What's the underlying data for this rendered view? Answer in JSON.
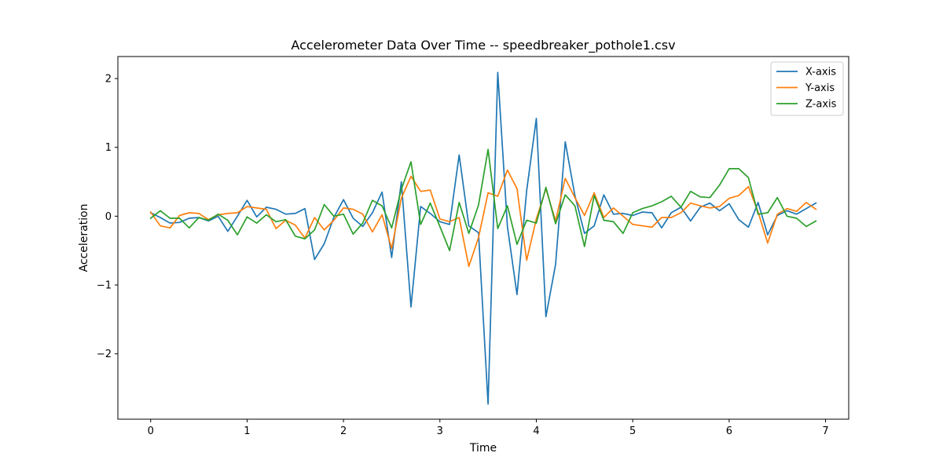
{
  "chart_data": {
    "type": "line",
    "title": "Accelerometer Data Over Time -- speedbreaker_pothole1.csv",
    "xlabel": "Time",
    "ylabel": "Acceleration",
    "xlim": [
      -0.34,
      7.24
    ],
    "ylim": [
      -2.95,
      2.32
    ],
    "xticks": [
      0,
      1,
      2,
      3,
      4,
      5,
      6,
      7
    ],
    "xtick_labels": [
      "0",
      "1",
      "2",
      "3",
      "4",
      "5",
      "6",
      "7"
    ],
    "yticks": [
      -2,
      -1,
      0,
      1,
      2
    ],
    "ytick_labels": [
      "−2",
      "−1",
      "0",
      "1",
      "2"
    ],
    "grid": false,
    "legend_position": "top-right",
    "x": [
      0.0,
      0.1,
      0.2,
      0.3,
      0.4,
      0.5,
      0.6,
      0.7,
      0.8,
      0.9,
      1.0,
      1.1,
      1.2,
      1.3,
      1.4,
      1.5,
      1.6,
      1.7,
      1.8,
      1.9,
      2.0,
      2.1,
      2.2,
      2.3,
      2.4,
      2.5,
      2.6,
      2.7,
      2.8,
      2.9,
      3.0,
      3.1,
      3.2,
      3.3,
      3.4,
      3.5,
      3.6,
      3.7,
      3.8,
      3.9,
      4.0,
      4.1,
      4.2,
      4.3,
      4.4,
      4.5,
      4.6,
      4.7,
      4.8,
      4.9,
      5.0,
      5.1,
      5.2,
      5.3,
      5.4,
      5.5,
      5.6,
      5.7,
      5.8,
      5.9,
      6.0,
      6.1,
      6.2,
      6.3,
      6.4,
      6.5,
      6.6,
      6.7,
      6.8,
      6.9
    ],
    "series": [
      {
        "name": "X-axis",
        "color": "#1f77b4",
        "values": [
          0.05,
          -0.02,
          -0.1,
          -0.09,
          -0.03,
          -0.02,
          -0.07,
          0.0,
          -0.22,
          0.0,
          0.23,
          -0.01,
          0.13,
          0.1,
          0.03,
          0.04,
          0.11,
          -0.63,
          -0.4,
          -0.02,
          0.24,
          -0.03,
          -0.15,
          0.05,
          0.35,
          -0.6,
          0.5,
          -1.32,
          0.14,
          0.04,
          -0.08,
          -0.12,
          0.89,
          -0.14,
          -0.24,
          -2.73,
          2.09,
          -0.15,
          -1.14,
          0.37,
          1.42,
          -1.46,
          -0.7,
          1.08,
          0.3,
          -0.25,
          -0.14,
          0.31,
          0.03,
          0.04,
          0.01,
          0.06,
          0.05,
          -0.17,
          0.05,
          0.13,
          -0.07,
          0.13,
          0.19,
          0.08,
          0.18,
          -0.05,
          -0.16,
          0.2,
          -0.27,
          0.01,
          0.08,
          0.03,
          0.11,
          0.19
        ]
      },
      {
        "name": "Y-axis",
        "color": "#ff7f0e",
        "values": [
          0.06,
          -0.14,
          -0.17,
          0.01,
          0.05,
          0.04,
          -0.05,
          0.02,
          0.04,
          0.05,
          0.14,
          0.12,
          0.1,
          -0.18,
          -0.06,
          -0.13,
          -0.32,
          -0.02,
          -0.2,
          -0.06,
          0.12,
          0.1,
          0.03,
          -0.23,
          0.02,
          -0.47,
          0.26,
          0.58,
          0.36,
          0.38,
          -0.04,
          -0.08,
          -0.02,
          -0.73,
          -0.31,
          0.34,
          0.29,
          0.67,
          0.4,
          -0.64,
          -0.04,
          0.4,
          -0.07,
          0.55,
          0.27,
          0.01,
          0.34,
          -0.02,
          0.12,
          0.0,
          -0.12,
          -0.14,
          -0.16,
          -0.02,
          -0.02,
          0.05,
          0.19,
          0.15,
          0.12,
          0.14,
          0.26,
          0.3,
          0.43,
          0.06,
          -0.39,
          0.03,
          0.11,
          0.07,
          0.2,
          0.1
        ]
      },
      {
        "name": "Z-axis",
        "color": "#2ca02c",
        "values": [
          -0.03,
          0.08,
          -0.03,
          -0.03,
          -0.17,
          -0.02,
          -0.06,
          0.03,
          -0.06,
          -0.27,
          -0.01,
          -0.1,
          0.02,
          -0.08,
          -0.05,
          -0.29,
          -0.33,
          -0.2,
          0.17,
          0.0,
          0.03,
          -0.26,
          -0.1,
          0.23,
          0.15,
          -0.17,
          0.39,
          0.79,
          -0.12,
          0.19,
          -0.15,
          -0.5,
          0.2,
          -0.25,
          0.16,
          0.97,
          -0.18,
          0.15,
          -0.41,
          -0.06,
          -0.1,
          0.42,
          -0.11,
          0.31,
          0.15,
          -0.44,
          0.3,
          -0.06,
          -0.08,
          -0.25,
          0.05,
          0.11,
          0.15,
          0.21,
          0.29,
          0.13,
          0.36,
          0.28,
          0.27,
          0.45,
          0.69,
          0.69,
          0.56,
          0.03,
          0.05,
          0.27,
          0.0,
          -0.03,
          -0.15,
          -0.07
        ]
      }
    ]
  }
}
